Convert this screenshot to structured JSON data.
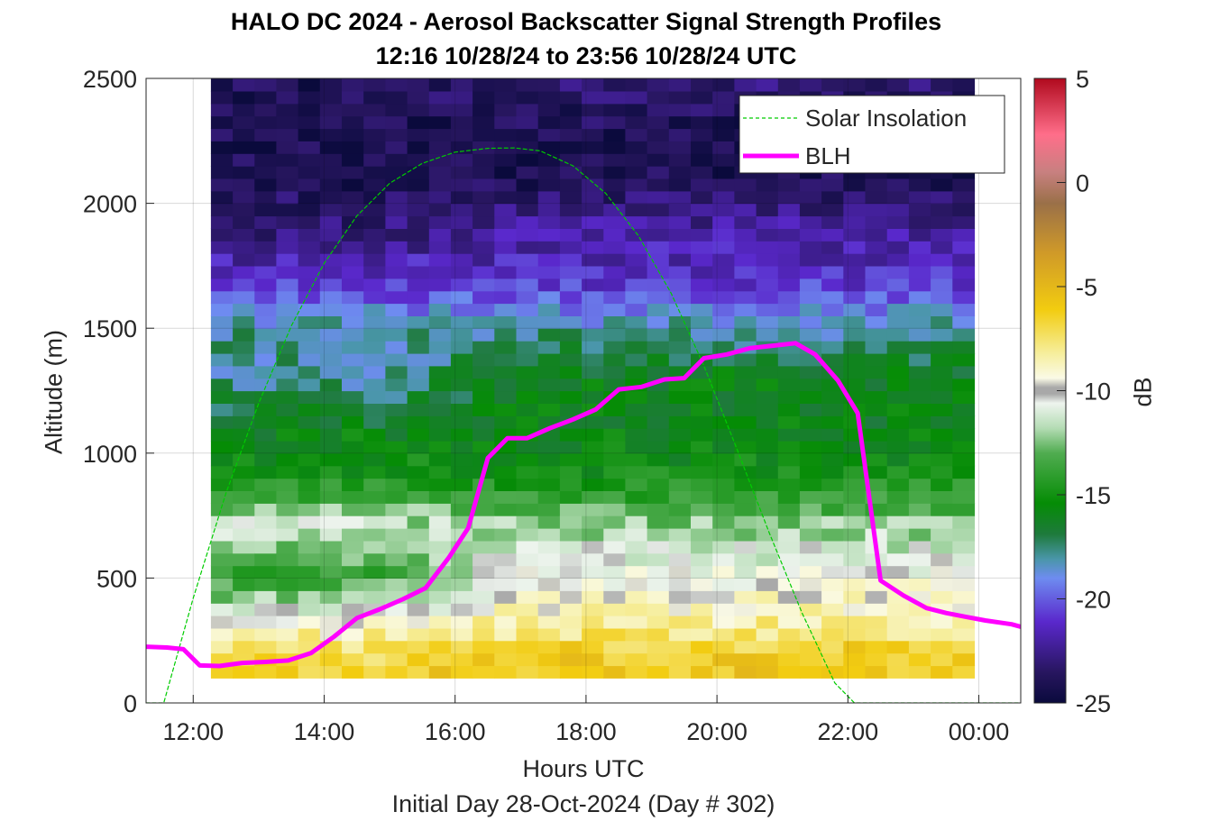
{
  "chart_data": {
    "type": "heatmap",
    "title": "HALO DC 2024 - Aerosol Backscatter Signal Strength Profiles",
    "subtitle": "12:16 10/28/24 to 23:56 10/28/24  UTC",
    "xlabel": "Hours UTC",
    "ylabel": "Altitude (m)",
    "footnote": "Initial Day 28-Oct-2024 (Day # 302)",
    "xlim_hours": [
      11.28,
      24.64
    ],
    "ylim": [
      0,
      2500
    ],
    "x_ticks": [
      {
        "value": 12,
        "label": "12:00"
      },
      {
        "value": 14,
        "label": "14:00"
      },
      {
        "value": 16,
        "label": "16:00"
      },
      {
        "value": 18,
        "label": "18:00"
      },
      {
        "value": 20,
        "label": "20:00"
      },
      {
        "value": 22,
        "label": "22:00"
      },
      {
        "value": 24,
        "label": "00:00"
      }
    ],
    "y_ticks": [
      {
        "value": 0,
        "label": "0"
      },
      {
        "value": 500,
        "label": "500"
      },
      {
        "value": 1000,
        "label": "1000"
      },
      {
        "value": 1500,
        "label": "1500"
      },
      {
        "value": 2000,
        "label": "2000"
      },
      {
        "value": 2500,
        "label": "2500"
      }
    ],
    "grid": true,
    "colorbar": {
      "label": "dB",
      "range": [
        -25,
        5
      ],
      "ticks": [
        {
          "value": 5,
          "label": "5"
        },
        {
          "value": 0,
          "label": "0"
        },
        {
          "value": -5,
          "label": "-5"
        },
        {
          "value": -10,
          "label": "-10"
        },
        {
          "value": -15,
          "label": "-15"
        },
        {
          "value": -20,
          "label": "-20"
        },
        {
          "value": -25,
          "label": "-25"
        }
      ]
    },
    "data_extent": {
      "x_start_hours": 12.27,
      "x_end_hours": 23.93,
      "y_bottom_m": 100,
      "y_top_m": 2500
    },
    "blh_layer_profile_dB": {
      "note_heights_m": [
        100,
        200,
        300,
        500,
        700,
        900,
        1100,
        1300,
        1500,
        1700,
        1900,
        2100,
        2300,
        2500
      ],
      "morning_12_15h": [
        -6,
        -7,
        -9,
        -14,
        -11,
        -15,
        -16,
        -18,
        -18,
        -21,
        -23,
        -24,
        -24,
        -24
      ],
      "afternoon_17_21h": [
        -6,
        -6,
        -8,
        -10,
        -12,
        -15,
        -16,
        -16,
        -18,
        -21,
        -22,
        -24,
        -24,
        -23
      ]
    },
    "legend": {
      "position": "top-right",
      "entries": [
        {
          "name": "Solar Insolation",
          "color": "#00cc00",
          "style": "dashed"
        },
        {
          "name": "BLH",
          "color": "#ff00ff",
          "style": "solid"
        }
      ]
    },
    "series": [
      {
        "name": "Solar Insolation",
        "color": "#00cc00",
        "x_hours": [
          11.28,
          11.55,
          12.0,
          12.5,
          13.0,
          13.5,
          14.0,
          14.5,
          15.0,
          15.5,
          16.0,
          16.5,
          16.9,
          17.3,
          17.8,
          18.3,
          18.8,
          19.3,
          19.8,
          20.3,
          20.8,
          21.3,
          21.8,
          22.1,
          22.3,
          24.64
        ],
        "y": [
          0,
          0,
          420,
          840,
          1200,
          1510,
          1760,
          1950,
          2080,
          2160,
          2205,
          2220,
          2222,
          2210,
          2150,
          2040,
          1870,
          1640,
          1350,
          1020,
          680,
          360,
          80,
          0,
          0,
          0
        ]
      },
      {
        "name": "BLH",
        "color": "#ff00ff",
        "x_hours": [
          11.28,
          11.6,
          11.85,
          12.1,
          12.4,
          12.75,
          13.1,
          13.45,
          13.8,
          14.15,
          14.5,
          14.85,
          15.2,
          15.55,
          15.9,
          16.2,
          16.5,
          16.8,
          17.1,
          17.45,
          17.8,
          18.15,
          18.5,
          18.85,
          19.2,
          19.5,
          19.8,
          20.15,
          20.5,
          20.85,
          21.2,
          21.5,
          21.85,
          22.15,
          22.5,
          22.85,
          23.2,
          23.5,
          23.8,
          24.1,
          24.5,
          24.64
        ],
        "y": [
          225,
          222,
          215,
          150,
          148,
          160,
          164,
          170,
          200,
          265,
          340,
          375,
          415,
          460,
          580,
          700,
          980,
          1060,
          1060,
          1100,
          1135,
          1175,
          1255,
          1265,
          1295,
          1300,
          1380,
          1395,
          1420,
          1430,
          1440,
          1395,
          1290,
          1160,
          490,
          430,
          380,
          360,
          345,
          330,
          315,
          305
        ]
      }
    ]
  }
}
